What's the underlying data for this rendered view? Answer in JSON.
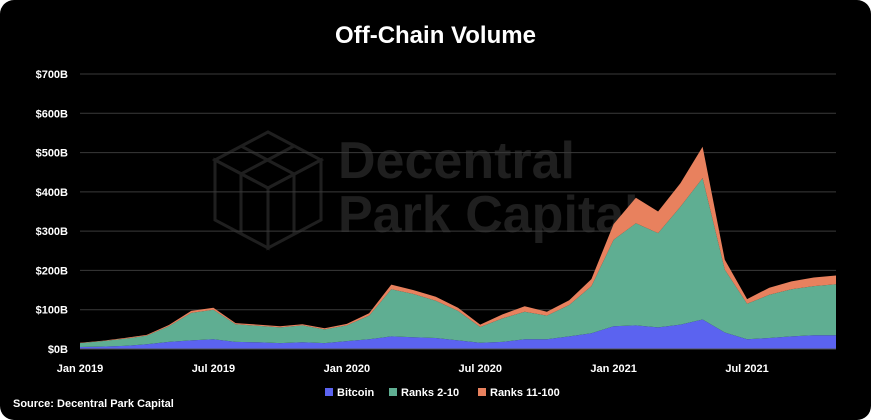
{
  "source": "Source: Decentral Park Capital",
  "watermark": {
    "line1": "Decentral",
    "line2": "Park Capital"
  },
  "colors": {
    "background": "#000000",
    "grid": "#3a3a3a"
  },
  "chart_data": {
    "type": "area",
    "stacked": true,
    "title": "Off-Chain Volume",
    "xlabel": "",
    "ylabel": "",
    "ylim": [
      0,
      700
    ],
    "grid": true,
    "legend": "bottom-center",
    "x_range": [
      "2019-01",
      "2021-11"
    ],
    "y_ticks": [
      {
        "value": 0,
        "label": "$0B"
      },
      {
        "value": 100,
        "label": "$100B"
      },
      {
        "value": 200,
        "label": "$200B"
      },
      {
        "value": 300,
        "label": "$300B"
      },
      {
        "value": 400,
        "label": "$400B"
      },
      {
        "value": 500,
        "label": "$500B"
      },
      {
        "value": 600,
        "label": "$600B"
      },
      {
        "value": 700,
        "label": "$700B"
      }
    ],
    "x_ticks": [
      {
        "value": "2019-01",
        "label": "Jan 2019"
      },
      {
        "value": "2019-07",
        "label": "Jul 2019"
      },
      {
        "value": "2020-01",
        "label": "Jan 2020"
      },
      {
        "value": "2020-07",
        "label": "Jul 2020"
      },
      {
        "value": "2021-01",
        "label": "Jan 2021"
      },
      {
        "value": "2021-07",
        "label": "Jul 2021"
      }
    ],
    "x": [
      "2019-01",
      "2019-02",
      "2019-03",
      "2019-04",
      "2019-05",
      "2019-06",
      "2019-07",
      "2019-08",
      "2019-09",
      "2019-10",
      "2019-11",
      "2019-12",
      "2020-01",
      "2020-02",
      "2020-03",
      "2020-04",
      "2020-05",
      "2020-06",
      "2020-07",
      "2020-08",
      "2020-09",
      "2020-10",
      "2020-11",
      "2020-12",
      "2021-01",
      "2021-02",
      "2021-03",
      "2021-04",
      "2021-05",
      "2021-06",
      "2021-07",
      "2021-08",
      "2021-09",
      "2021-10",
      "2021-11"
    ],
    "series": [
      {
        "name": "Bitcoin",
        "color": "#5b63f0",
        "values": [
          5,
          6,
          8,
          12,
          18,
          22,
          25,
          18,
          17,
          15,
          17,
          15,
          20,
          25,
          32,
          30,
          28,
          22,
          16,
          18,
          25,
          25,
          32,
          40,
          58,
          60,
          55,
          62,
          75,
          42,
          25,
          28,
          32,
          35,
          35
        ]
      },
      {
        "name": "Ranks 2-10",
        "color": "#5fae92",
        "values": [
          10,
          14,
          18,
          22,
          40,
          70,
          75,
          45,
          42,
          40,
          43,
          35,
          40,
          60,
          120,
          110,
          95,
          75,
          40,
          60,
          70,
          60,
          80,
          120,
          220,
          260,
          240,
          300,
          360,
          160,
          90,
          110,
          120,
          125,
          130
        ]
      },
      {
        "name": "Ranks 11-100",
        "color": "#e8815e",
        "values": [
          1,
          1,
          2,
          2,
          3,
          5,
          5,
          3,
          3,
          3,
          3,
          3,
          4,
          6,
          12,
          10,
          10,
          8,
          6,
          10,
          14,
          10,
          12,
          18,
          40,
          65,
          55,
          60,
          80,
          25,
          12,
          18,
          20,
          22,
          22
        ]
      }
    ]
  }
}
